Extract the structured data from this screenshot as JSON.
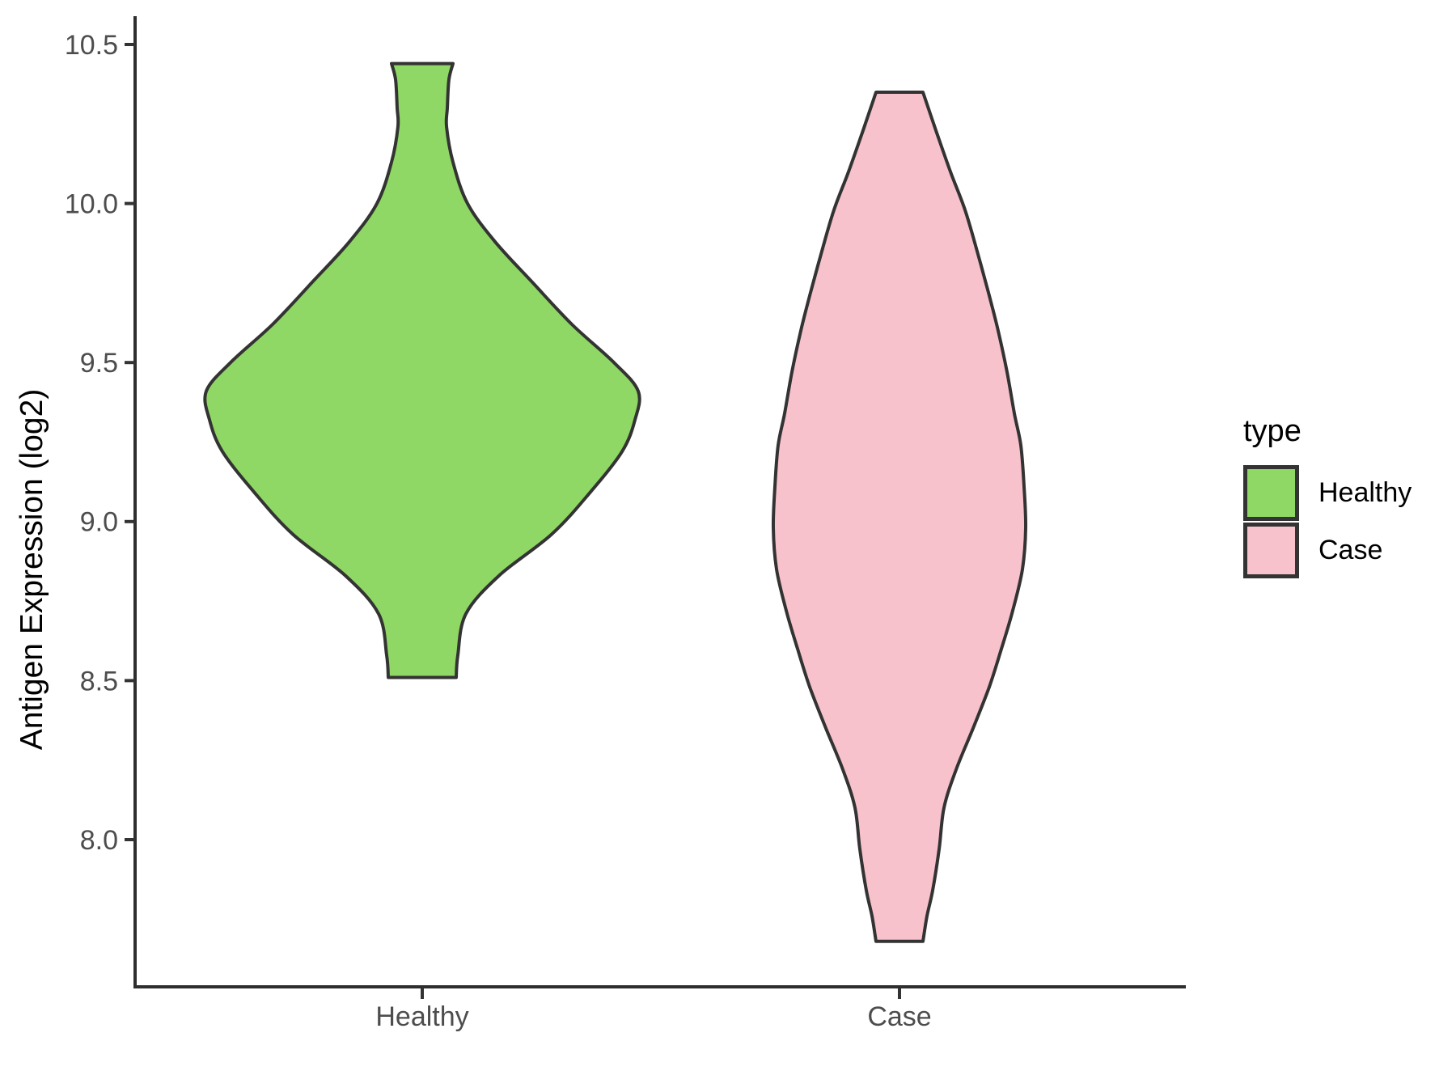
{
  "chart_data": {
    "type": "violin",
    "title": "",
    "xlabel": "",
    "ylabel": "Antigen Expression (log2)",
    "categories": [
      "Healthy",
      "Case"
    ],
    "y_axis": {
      "range": [
        7.54,
        10.59
      ],
      "ticks": [
        {
          "label": "10.5",
          "value": 10.5
        },
        {
          "label": "10.0",
          "value": 10.0
        },
        {
          "label": "9.5",
          "value": 9.5
        },
        {
          "label": "9.0",
          "value": 9.0
        },
        {
          "label": "8.5",
          "value": 8.5
        },
        {
          "label": "8.0",
          "value": 8.0
        }
      ]
    },
    "x_axis": {
      "categories": [
        {
          "label": "Healthy"
        },
        {
          "label": "Case"
        }
      ]
    },
    "grid": false,
    "legend_position": "right",
    "series": [
      {
        "name": "Healthy",
        "fill": "#90D865",
        "outline": "#333333",
        "x_index": 1,
        "y_min": 8.51,
        "y_max": 10.44,
        "peak_at": 9.41,
        "profile": [
          [
            10.44,
            0.0644
          ],
          [
            10.39,
            0.0559
          ],
          [
            10.3,
            0.0525
          ],
          [
            10.24,
            0.051
          ],
          [
            10.13,
            0.0644
          ],
          [
            10.0,
            0.0949
          ],
          [
            9.88,
            0.1525
          ],
          [
            9.75,
            0.2322
          ],
          [
            9.62,
            0.3136
          ],
          [
            9.5,
            0.4017
          ],
          [
            9.41,
            0.4525
          ],
          [
            9.32,
            0.4458
          ],
          [
            9.22,
            0.4186
          ],
          [
            9.09,
            0.3508
          ],
          [
            8.96,
            0.2712
          ],
          [
            8.83,
            0.161
          ],
          [
            8.71,
            0.0915
          ],
          [
            8.58,
            0.0746
          ],
          [
            8.51,
            0.0712
          ]
        ]
      },
      {
        "name": "Case",
        "fill": "#F7C2CC",
        "outline": "#333333",
        "x_index": 2,
        "y_min": 7.68,
        "y_max": 10.35,
        "peak_at": 8.98,
        "profile": [
          [
            10.35,
            0.0492
          ],
          [
            10.23,
            0.0763
          ],
          [
            10.1,
            0.1068
          ],
          [
            9.98,
            0.1373
          ],
          [
            9.85,
            0.1627
          ],
          [
            9.72,
            0.1864
          ],
          [
            9.6,
            0.2068
          ],
          [
            9.47,
            0.2254
          ],
          [
            9.34,
            0.2407
          ],
          [
            9.24,
            0.2542
          ],
          [
            9.11,
            0.261
          ],
          [
            8.98,
            0.2644
          ],
          [
            8.85,
            0.2576
          ],
          [
            8.72,
            0.2373
          ],
          [
            8.6,
            0.2136
          ],
          [
            8.48,
            0.1881
          ],
          [
            8.35,
            0.1542
          ],
          [
            8.22,
            0.1186
          ],
          [
            8.1,
            0.0932
          ],
          [
            7.97,
            0.0831
          ],
          [
            7.84,
            0.0695
          ],
          [
            7.76,
            0.0576
          ],
          [
            7.68,
            0.0492
          ]
        ]
      }
    ],
    "colors": {
      "healthy_fill": "#90D865",
      "case_fill": "#F7C2CC",
      "violin_outline": "#333333",
      "axis_line": "#2e2e2e",
      "tick_text": "#4d4d4d",
      "title_text": "#000000",
      "background": "#ffffff"
    }
  },
  "legend": {
    "title": "type",
    "items": [
      {
        "label": "Healthy",
        "color": "#90D865"
      },
      {
        "label": "Case",
        "color": "#F7C2CC"
      }
    ]
  }
}
